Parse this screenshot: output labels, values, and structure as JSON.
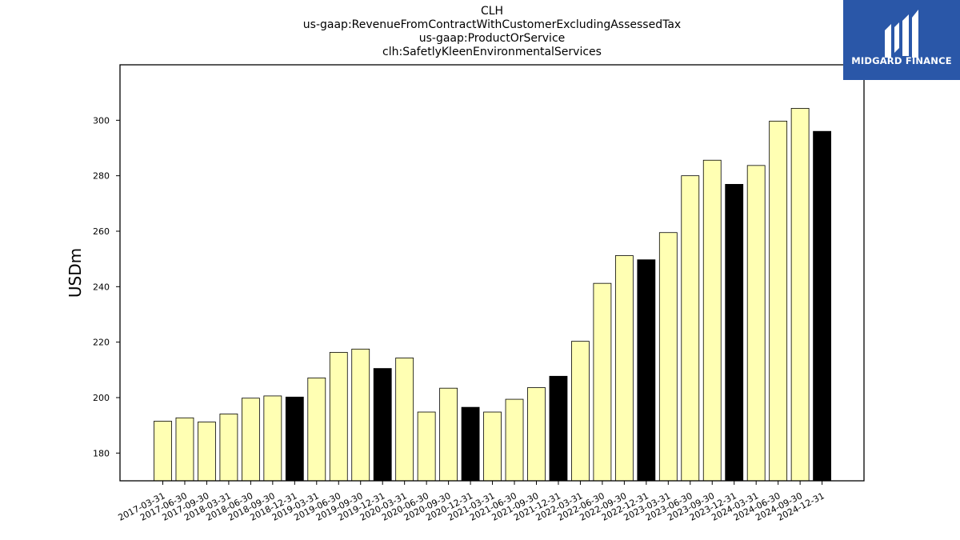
{
  "chart_data": {
    "type": "bar",
    "title_lines": [
      "CLH",
      "us-gaap:RevenueFromContractWithCustomerExcludingAssessedTax",
      "us-gaap:ProductOrService",
      "clh:SafetlyKleenEnvironmentalServices"
    ],
    "ylabel": "USDm",
    "xlabel": "",
    "ylim": [
      170,
      320
    ],
    "yticks": [
      180,
      200,
      220,
      240,
      260,
      280,
      300
    ],
    "categories": [
      "2017-03-31",
      "2017-06-30",
      "2017-09-30",
      "2018-03-31",
      "2018-06-30",
      "2018-09-30",
      "2018-12-31",
      "2019-03-31",
      "2019-06-30",
      "2019-09-30",
      "2019-12-31",
      "2020-03-31",
      "2020-06-30",
      "2020-09-30",
      "2020-12-31",
      "2021-03-31",
      "2021-06-30",
      "2021-09-30",
      "2021-12-31",
      "2022-03-31",
      "2022-06-30",
      "2022-09-30",
      "2022-12-31",
      "2023-03-31",
      "2023-06-30",
      "2023-09-30",
      "2023-12-31",
      "2024-03-31",
      "2024-06-30",
      "2024-09-30",
      "2024-12-31"
    ],
    "values": [
      191.5,
      192.7,
      191.2,
      194.1,
      199.8,
      200.6,
      200.2,
      207.1,
      216.3,
      217.5,
      210.5,
      214.3,
      194.8,
      203.4,
      196.5,
      194.8,
      199.4,
      203.6,
      207.7,
      220.3,
      241.2,
      251.2,
      249.7,
      259.5,
      280.0,
      285.6,
      276.9,
      283.7,
      299.7,
      304.3,
      296.0
    ],
    "highlight_categories": [
      "2018-12-31",
      "2019-12-31",
      "2020-12-31",
      "2021-12-31",
      "2022-12-31",
      "2023-12-31",
      "2024-12-31"
    ],
    "colors": {
      "quarter": "#ffffb3",
      "year_end": "#000000",
      "edge": "#000000"
    },
    "grid": false,
    "legend": "none"
  },
  "logo": {
    "text": "MIDGARD FINANCE",
    "background": "#2a57a8"
  }
}
